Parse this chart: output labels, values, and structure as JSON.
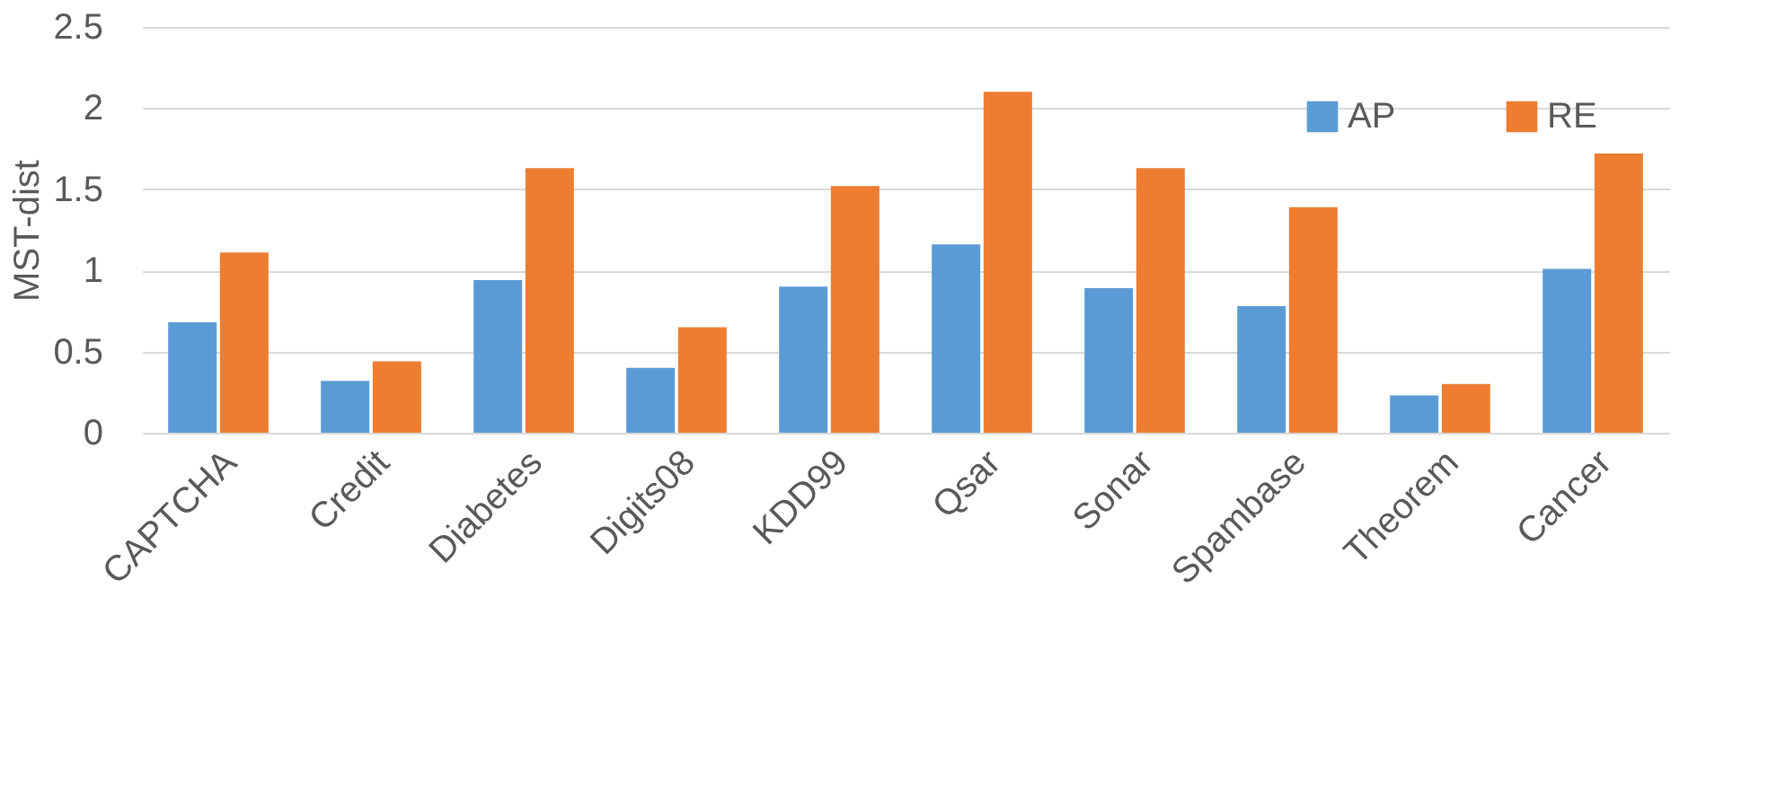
{
  "chart_data": {
    "type": "bar",
    "ylabel": "MST-dist",
    "categories": [
      "CAPTCHA",
      "Credit",
      "Diabetes",
      "Digits08",
      "KDD99",
      "Qsar",
      "Sonar",
      "Spambase",
      "Theorem",
      "Cancer"
    ],
    "series": [
      {
        "name": "AP",
        "color": "#5b9bd5",
        "values": [
          0.68,
          0.32,
          0.94,
          0.4,
          0.9,
          1.16,
          0.89,
          0.78,
          0.23,
          1.01
        ]
      },
      {
        "name": "RE",
        "color": "#ed7d31",
        "values": [
          1.11,
          0.44,
          1.63,
          0.65,
          1.52,
          2.1,
          1.63,
          1.39,
          0.3,
          1.72
        ]
      }
    ],
    "ylim": [
      0,
      2.5
    ],
    "yticks": [
      0,
      0.5,
      1,
      1.5,
      2,
      2.5
    ],
    "grid": "y",
    "legend": "top right"
  }
}
